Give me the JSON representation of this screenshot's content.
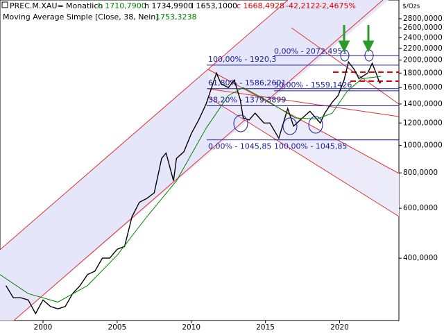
{
  "chart_data": {
    "type": "line",
    "symbol": "PREC.M.XAU=",
    "timeframe": "Monatlich",
    "open": "o 1710,7900",
    "high": "h 1734,9900",
    "low": "l 1653,1000",
    "close": "c 1668,4928",
    "change": "-42,2122",
    "change_pct": "-2,4675%",
    "indicator": "Moving Average Simple  [Close, 38, Nein]",
    "indicator_value": "1753,3238",
    "unit": "$/Ozs",
    "log_scale": true,
    "xlim": [
      1997.1,
      2024.0
    ],
    "ylim": [
      241,
      3260
    ],
    "xticks": [
      2000,
      2005,
      2010,
      2015,
      2020
    ],
    "yticks": [
      {
        "value": 2800,
        "label": "2800,0000"
      },
      {
        "value": 2600,
        "label": "2600,0000"
      },
      {
        "value": 2400,
        "label": "2400,0000"
      },
      {
        "value": 2200,
        "label": "2200,0000"
      },
      {
        "value": 2000,
        "label": "2000,0000"
      },
      {
        "value": 1800,
        "label": "1800,0000"
      },
      {
        "value": 1600,
        "label": "1600,0000"
      },
      {
        "value": 1400,
        "label": "1400,0000"
      },
      {
        "value": 1200,
        "label": "1200,0000"
      },
      {
        "value": 1000,
        "label": "1000,0000"
      },
      {
        "value": 800,
        "label": "800,0000"
      },
      {
        "value": 600,
        "label": "600,0000"
      },
      {
        "value": 400,
        "label": "400,0000"
      }
    ],
    "series": [
      {
        "name": "PREC.M.XAU=",
        "color": "#000000",
        "x": [
          1997.5,
          1998,
          1998.5,
          1999,
          1999.5,
          2000,
          2000.5,
          2001,
          2001.5,
          2002,
          2002.5,
          2003,
          2003.5,
          2004,
          2004.5,
          2005,
          2005.5,
          2006,
          2006.5,
          2007,
          2007.5,
          2008,
          2008.3,
          2008.8,
          2009,
          2009.5,
          2010,
          2010.5,
          2011,
          2011.7,
          2012,
          2012.5,
          2012.9,
          2013.3,
          2013.5,
          2013.9,
          2014.3,
          2014.9,
          2015.3,
          2015.9,
          2016.5,
          2016.9,
          2017.5,
          2018,
          2018.7,
          2019,
          2019.5,
          2019.9,
          2020.3,
          2020.6,
          2021,
          2021.3,
          2021.9,
          2022.2,
          2022.5,
          2022.7,
          2022.8
        ],
        "values": [
          320,
          290,
          290,
          285,
          255,
          285,
          270,
          265,
          270,
          300,
          320,
          350,
          360,
          400,
          400,
          430,
          440,
          560,
          630,
          650,
          680,
          900,
          940,
          750,
          900,
          950,
          1100,
          1230,
          1400,
          1800,
          1650,
          1600,
          1700,
          1450,
          1250,
          1230,
          1300,
          1200,
          1200,
          1060,
          1350,
          1170,
          1250,
          1320,
          1200,
          1300,
          1420,
          1500,
          1700,
          1970,
          1850,
          1720,
          1800,
          1950,
          1780,
          1660,
          1668.49
        ]
      },
      {
        "name": "Moving Average Simple",
        "color": "#008000",
        "x": [
          1997.1,
          1999,
          2001,
          2003,
          2005,
          2007,
          2009,
          2011,
          2012.5,
          2013.5,
          2015,
          2017,
          2018.5,
          2019.5,
          2020.5,
          2021.5,
          2022.8
        ],
        "values": [
          350,
          300,
          280,
          320,
          410,
          560,
          750,
          1150,
          1500,
          1600,
          1450,
          1250,
          1240,
          1300,
          1550,
          1720,
          1753.32
        ]
      }
    ],
    "fib_levels": [
      {
        "label": "0,00% - 2072,4951",
        "value": 2072.4951
      },
      {
        "label": "100,00% - 1920,3",
        "value": 1920.3
      },
      {
        "label": "61,80% - 1586,2601",
        "value": 1586.2601
      },
      {
        "label": "50,00% - 1559,1426",
        "value": 1559.1426
      },
      {
        "label": "38,20% - 1379,3899",
        "value": 1379.3899
      },
      {
        "label": "0,00% - 1045,85",
        "value": 1045.85
      },
      {
        "label": "100,00% - 1045,85",
        "value": 1045.85
      }
    ]
  }
}
